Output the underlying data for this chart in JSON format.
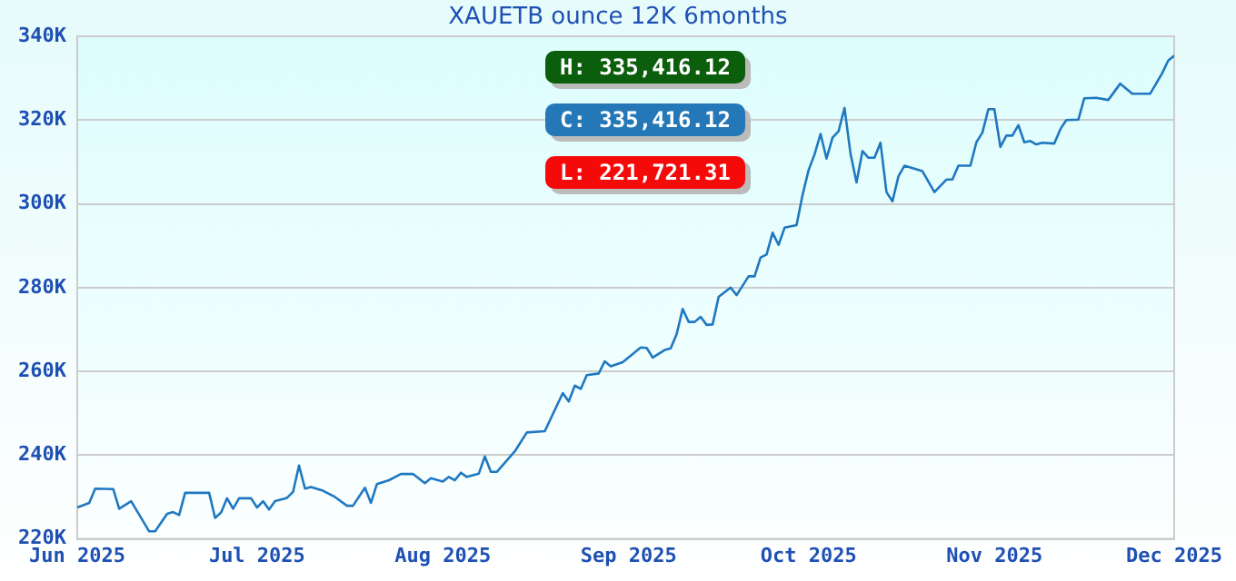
{
  "chart_data": {
    "type": "line",
    "title": "XAUETB ounce 12K 6months",
    "x": [
      "2025-06-01",
      "2025-06-03",
      "2025-06-04",
      "2025-06-07",
      "2025-06-08",
      "2025-06-10",
      "2025-06-13",
      "2025-06-14",
      "2025-06-16",
      "2025-06-17",
      "2025-06-18",
      "2025-06-19",
      "2025-06-23",
      "2025-06-24",
      "2025-06-25",
      "2025-06-26",
      "2025-06-27",
      "2025-06-28",
      "2025-06-30",
      "2025-07-01",
      "2025-07-02",
      "2025-07-03",
      "2025-07-04",
      "2025-07-06",
      "2025-07-07",
      "2025-07-08",
      "2025-07-09",
      "2025-07-10",
      "2025-07-12",
      "2025-07-14",
      "2025-07-16",
      "2025-07-17",
      "2025-07-19",
      "2025-07-20",
      "2025-07-21",
      "2025-07-23",
      "2025-07-25",
      "2025-07-27",
      "2025-07-29",
      "2025-07-30",
      "2025-08-01",
      "2025-08-02",
      "2025-08-03",
      "2025-08-04",
      "2025-08-05",
      "2025-08-07",
      "2025-08-08",
      "2025-08-09",
      "2025-08-10",
      "2025-08-13",
      "2025-08-15",
      "2025-08-18",
      "2025-08-21",
      "2025-08-22",
      "2025-08-23",
      "2025-08-24",
      "2025-08-25",
      "2025-08-27",
      "2025-08-28",
      "2025-08-29",
      "2025-08-31",
      "2025-09-03",
      "2025-09-04",
      "2025-09-05",
      "2025-09-07",
      "2025-09-08",
      "2025-09-09",
      "2025-09-10",
      "2025-09-11",
      "2025-09-12",
      "2025-09-13",
      "2025-09-14",
      "2025-09-15",
      "2025-09-16",
      "2025-09-18",
      "2025-09-19",
      "2025-09-21",
      "2025-09-22",
      "2025-09-23",
      "2025-09-24",
      "2025-09-25",
      "2025-09-26",
      "2025-09-27",
      "2025-09-29",
      "2025-09-30",
      "2025-10-01",
      "2025-10-02",
      "2025-10-03",
      "2025-10-04",
      "2025-10-05",
      "2025-10-06",
      "2025-10-07",
      "2025-10-08",
      "2025-10-09",
      "2025-10-10",
      "2025-10-11",
      "2025-10-12",
      "2025-10-13",
      "2025-10-14",
      "2025-10-15",
      "2025-10-16",
      "2025-10-17",
      "2025-10-20",
      "2025-10-22",
      "2025-10-24",
      "2025-10-25",
      "2025-10-26",
      "2025-10-28",
      "2025-10-29",
      "2025-10-30",
      "2025-10-31",
      "2025-11-01",
      "2025-11-02",
      "2025-11-03",
      "2025-11-04",
      "2025-11-05",
      "2025-11-06",
      "2025-11-07",
      "2025-11-08",
      "2025-11-09",
      "2025-11-11",
      "2025-11-12",
      "2025-11-13",
      "2025-11-15",
      "2025-11-16",
      "2025-11-18",
      "2025-11-20",
      "2025-11-22",
      "2025-11-24",
      "2025-11-27",
      "2025-11-29",
      "2025-11-30",
      "2025-12-01"
    ],
    "series": [
      {
        "color": "#1f78c0",
        "values": [
          227500,
          228600,
          232000,
          231900,
          227200,
          229000,
          221800,
          221800,
          226000,
          226400,
          225700,
          231000,
          231000,
          225000,
          226300,
          229700,
          227200,
          229700,
          229700,
          227500,
          229000,
          227000,
          229000,
          229800,
          231200,
          237500,
          232000,
          232400,
          231500,
          230000,
          227900,
          227900,
          232200,
          228600,
          233100,
          234000,
          235500,
          235500,
          233300,
          234500,
          233700,
          234800,
          234000,
          235800,
          234800,
          235600,
          239700,
          236000,
          236000,
          240900,
          245400,
          245700,
          254800,
          252800,
          256600,
          255800,
          259100,
          259500,
          262400,
          261200,
          262200,
          265700,
          265600,
          263300,
          265100,
          265500,
          268900,
          274900,
          271800,
          271800,
          273000,
          271100,
          271200,
          277800,
          280000,
          278200,
          282700,
          282700,
          287200,
          287900,
          293100,
          290200,
          294300,
          294900,
          302100,
          308000,
          311800,
          316700,
          310800,
          315800,
          317300,
          322900,
          312000,
          305100,
          312600,
          311000,
          311000,
          314600,
          302800,
          300600,
          306600,
          309100,
          307800,
          302800,
          305800,
          305800,
          309100,
          309100,
          314700,
          317000,
          322600,
          322600,
          313600,
          316300,
          316300,
          318800,
          314700,
          315000,
          314200,
          314600,
          314400,
          317800,
          320000,
          320100,
          325200,
          325300,
          324800,
          328700,
          326300,
          326300,
          331200,
          334200,
          335400
        ]
      }
    ],
    "xlim": [
      "2025-06-01",
      "2025-12-01"
    ],
    "xticks": [
      {
        "value": "2025-06-01",
        "label": "Jun 2025"
      },
      {
        "value": "2025-07-01",
        "label": "Jul 2025"
      },
      {
        "value": "2025-08-01",
        "label": "Aug 2025"
      },
      {
        "value": "2025-09-01",
        "label": "Sep 2025"
      },
      {
        "value": "2025-10-01",
        "label": "Oct 2025"
      },
      {
        "value": "2025-11-01",
        "label": "Nov 2025"
      },
      {
        "value": "2025-12-01",
        "label": "Dec 2025"
      }
    ],
    "ylim": [
      220000,
      340000
    ],
    "yticks": [
      {
        "value": 220000,
        "label": "220K"
      },
      {
        "value": 240000,
        "label": "240K"
      },
      {
        "value": 260000,
        "label": "260K"
      },
      {
        "value": 280000,
        "label": "280K"
      },
      {
        "value": 300000,
        "label": "300K"
      },
      {
        "value": 320000,
        "label": "320K"
      },
      {
        "value": 340000,
        "label": "340K"
      }
    ],
    "annotations": [
      "H: 335,416.12",
      "C: 335,416.12",
      "L: 221,721.31"
    ],
    "grid": "y",
    "legend": false,
    "marker": "none",
    "line_style": "solid"
  }
}
